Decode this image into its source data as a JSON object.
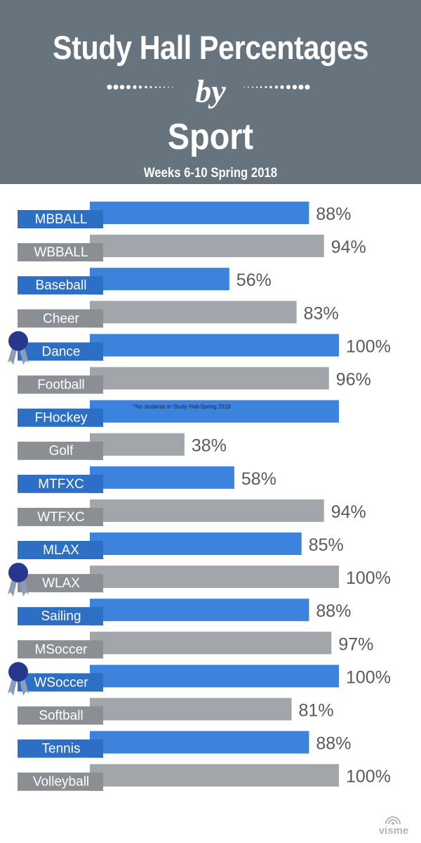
{
  "header": {
    "title_line1": "Study Hall Percentages",
    "title_by": "by",
    "title_line3": "Sport",
    "subtitle": "Weeks 6-10 Spring 2018"
  },
  "colors": {
    "header_bg": "#67737d",
    "blue": "#3b83dc",
    "blue_label": "#2d6fc4",
    "blue_fold": "#1c4a85",
    "gray": "#a2a6aa",
    "gray_label": "#8b8f93",
    "gray_fold": "#5f6367",
    "ribbon": "#27378d",
    "value_text": "#5a5a5a"
  },
  "watermark": "visme",
  "chart_data": {
    "type": "bar",
    "orientation": "horizontal",
    "xlim": [
      0,
      100
    ],
    "grid": false,
    "legend": "none",
    "categories": [
      "MBBALL",
      "WBBALL",
      "Baseball",
      "Cheer",
      "Dance",
      "Football",
      "FHockey",
      "Golf",
      "MTFXC",
      "WTFXC",
      "MLAX",
      "WLAX",
      "Sailing",
      "MSoccer",
      "WSoccer",
      "Softball",
      "Tennis",
      "Volleyball"
    ],
    "values": [
      88,
      94,
      56,
      83,
      100,
      96,
      null,
      38,
      58,
      94,
      85,
      100,
      88,
      97,
      100,
      81,
      88,
      100
    ],
    "value_labels": [
      "88%",
      "94%",
      "56%",
      "83%",
      "100%",
      "96%",
      "",
      "38%",
      "58%",
      "94%",
      "85%",
      "100%",
      "88%",
      "97%",
      "100%",
      "81%",
      "88%",
      "100%"
    ],
    "bar_colors": [
      "blue",
      "gray",
      "blue",
      "gray",
      "blue",
      "gray",
      "blue",
      "gray",
      "blue",
      "gray",
      "blue",
      "gray",
      "blue",
      "gray",
      "blue",
      "gray",
      "blue",
      "gray"
    ],
    "awards": [
      "Dance",
      "WLAX",
      "WSoccer"
    ],
    "annotations": [
      {
        "category": "FHockey",
        "text": "*No students in Study Hall-Spring 2018"
      }
    ]
  }
}
